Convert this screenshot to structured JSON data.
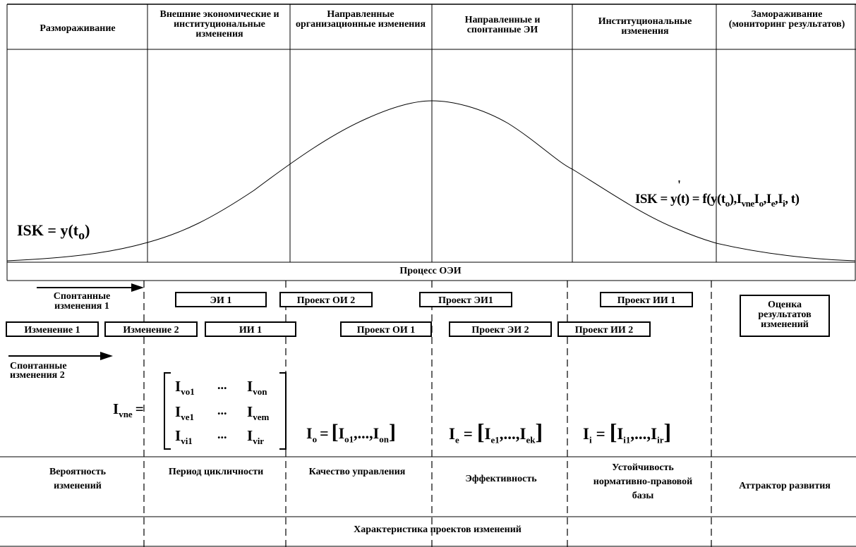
{
  "headers": [
    "Размораживание",
    "Внешние экономические и институциональные изменения",
    "Направленные организационные изменения",
    "Направленные и спонтанные ЭИ",
    "Институциональные изменения",
    "Замораживание (мониторинг результатов)"
  ],
  "curve": {
    "left_label": "ISK = y(t",
    "left_sub": "o",
    "left_close": ")",
    "right_prime": "'",
    "right_label_1": "ISK = y(t) = f(y(t",
    "right_sub_o": "o",
    "right_label_2": "),I",
    "right_sub_vne": "vne",
    "right_label_3": "I",
    "right_sub_o2": "o",
    "right_label_4": ",I",
    "right_sub_e": "e",
    "right_label_5": ",I",
    "right_sub_i": "i",
    "right_label_6": ", t)"
  },
  "process_label": "Процесс ОЭИ",
  "spontaneous": {
    "first": "Спонтанные изменения 1",
    "second": "Спонтанные изменения 2"
  },
  "boxes": {
    "change1": "Изменение 1",
    "change2": "Изменение 2",
    "ei1": "ЭИ 1",
    "ii1": "ИИ 1",
    "project_oi2": "Проект ОИ 2",
    "project_oi1": "Проект ОИ 1",
    "project_ei1": "Проект ЭИ1",
    "project_ei2": "Проект ЭИ 2",
    "project_ii1": "Проект ИИ 1",
    "project_ii2": "Проект ИИ 2",
    "evaluation": "Оценка результатов изменений"
  },
  "matrices": {
    "vne_label": "I",
    "vne_sub": "vne",
    "eq": "=",
    "dots": "...",
    "m": [
      "vo1",
      "von",
      "ve1",
      "vem",
      "vi1",
      "vir"
    ],
    "io_label": "I",
    "io_sub": "o",
    "io_items": [
      "o1",
      "on"
    ],
    "ie_label": "I",
    "ie_sub": "e",
    "ie_items": [
      "e1",
      "ek"
    ],
    "ii_label": "I",
    "ii_sub": "i",
    "ii_items": [
      "i1",
      "ir"
    ],
    "sep": ",...,"
  },
  "characteristics": [
    "Вероятность изменений",
    "Период цикличности",
    "Качество управления",
    "Эффективность",
    "Устойчивость нормативно-правовой базы",
    "Аттрактор развития"
  ],
  "footer_label": "Характеристика проектов изменений"
}
